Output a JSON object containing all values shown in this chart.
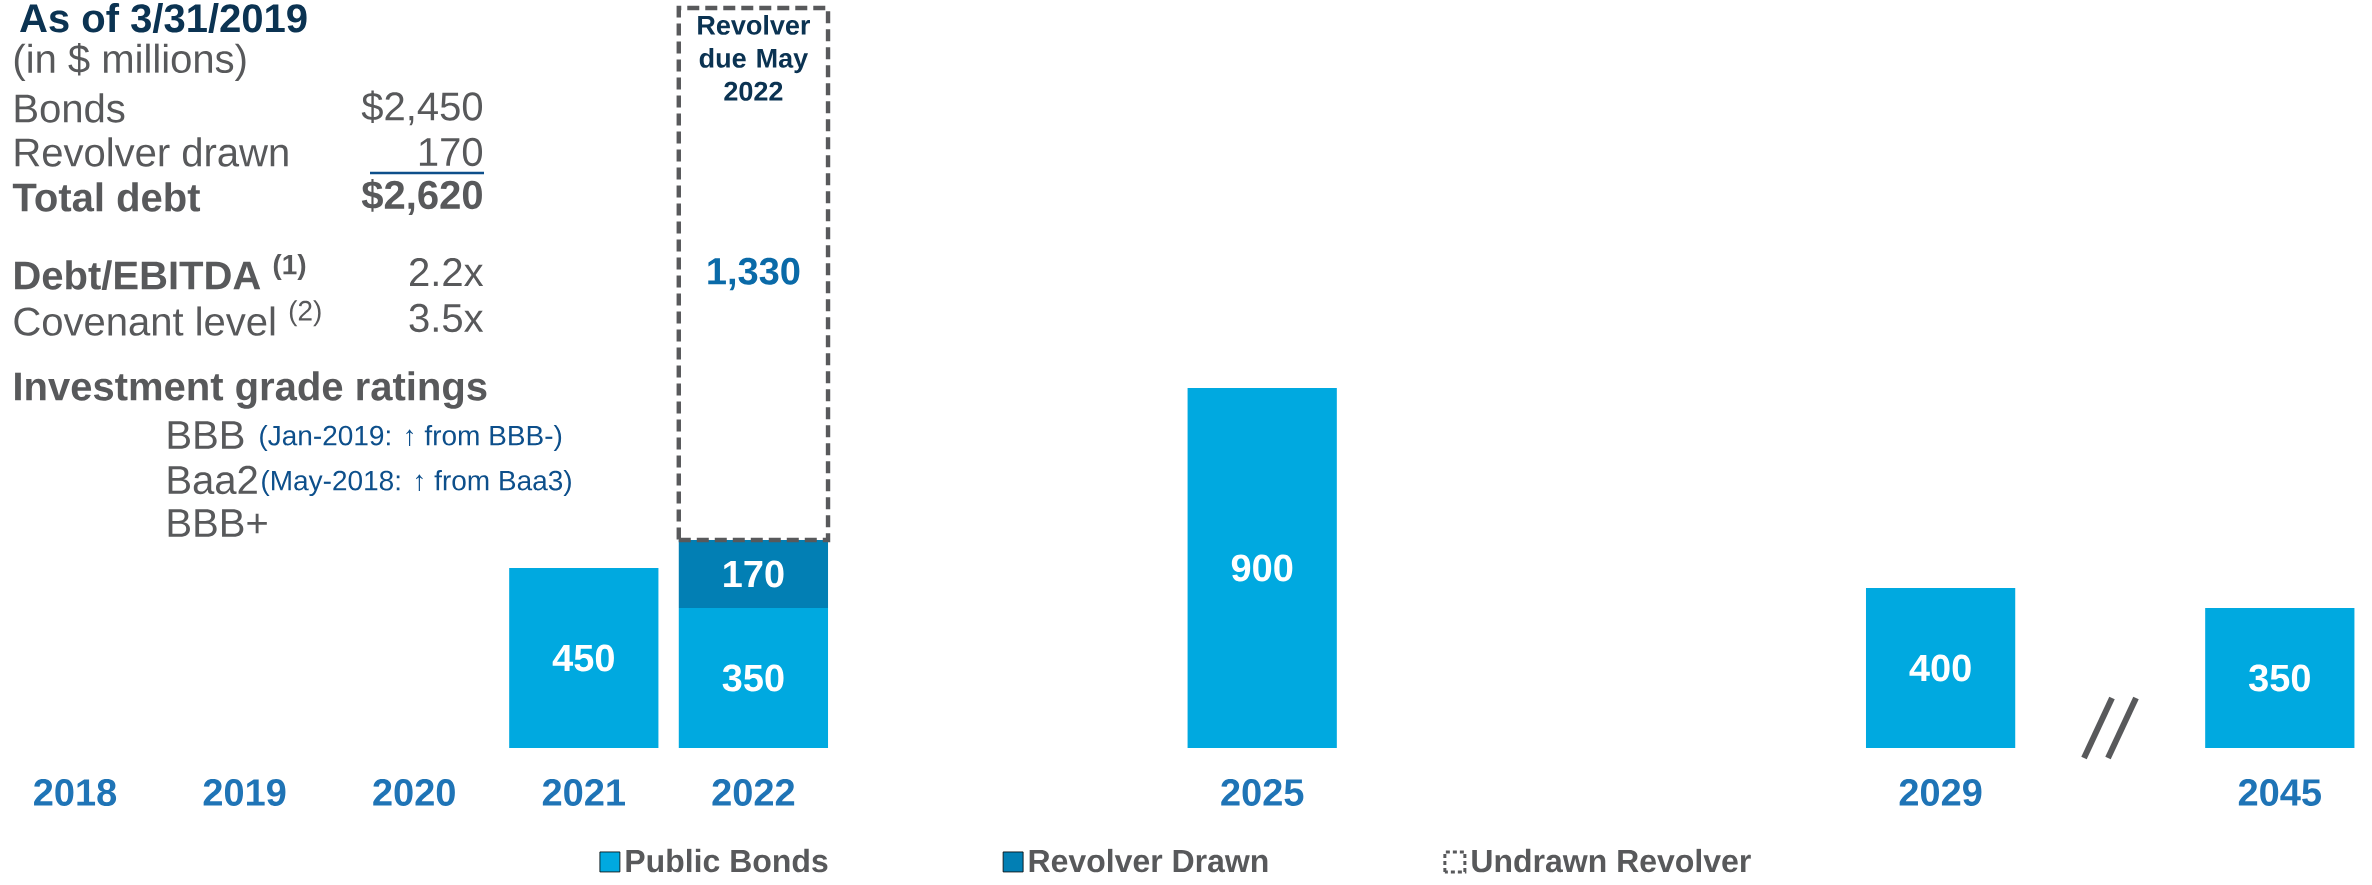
{
  "chart_data": {
    "type": "bar",
    "title": "As of 3/31/2019",
    "categories": [
      "2018",
      "2019",
      "2020",
      "2021",
      "2022",
      null,
      null,
      "2025",
      null,
      null,
      null,
      "2029",
      null,
      "2045"
    ],
    "series": [
      {
        "name": "Public Bonds",
        "color": "#00a9e0",
        "values": [
          null,
          null,
          null,
          450,
          350,
          null,
          null,
          900,
          null,
          null,
          null,
          400,
          null,
          350
        ]
      },
      {
        "name": "Revolver Drawn",
        "color": "#027fb4",
        "values": [
          null,
          null,
          null,
          null,
          170,
          null,
          null,
          null,
          null,
          null,
          null,
          null,
          null,
          null
        ]
      },
      {
        "name": "Undrawn Revolver",
        "color": "#ffffff",
        "line_style": "dashed",
        "values": [
          null,
          null,
          null,
          null,
          1330,
          null,
          null,
          null,
          null,
          null,
          null,
          null,
          null,
          null
        ],
        "value_labels": [
          null,
          null,
          null,
          null,
          "1,330",
          null,
          null,
          null,
          null,
          null,
          null,
          null,
          null,
          null
        ]
      }
    ],
    "stacked": true,
    "data_labels": true,
    "legend": "bottom",
    "grid": false,
    "annotations": [
      "(in $ millions)",
      "Bonds",
      "$2,450",
      "Revolver drawn",
      "170",
      "Total debt",
      "$2,620",
      "Debt/EBITDA $^{(1)}$",
      "2.2x",
      "Covenant level $^{(2)}$",
      "3.5x",
      "Investment grade ratings",
      "BBB",
      "(Jan-2019: ↑ from BBB-)",
      "Baa2",
      "(May-2018: ↑ from Baa3)",
      "BBB+",
      "Revolver due May 2022"
    ]
  }
}
